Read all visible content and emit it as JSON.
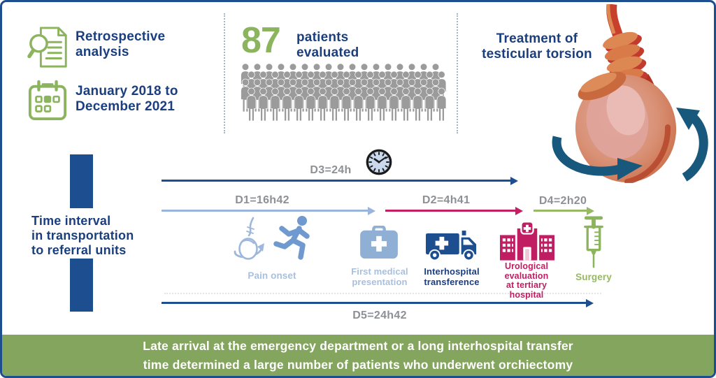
{
  "palette": {
    "navy": "#1d4e8f",
    "navy_text": "#1b3f7e",
    "green": "#8cb45e",
    "light_blue_arrow": "#9ab5dc",
    "pale_blue_text": "#a9c0dd",
    "runner_blue": "#6f99cf",
    "crimson": "#c41f60",
    "gray_label": "#8d9094",
    "crowd_gray": "#9b9b9b",
    "banner_bg": "#84a55e",
    "torsion_arrow_teal": "#19587d"
  },
  "study": {
    "type": "Retrospective analysis",
    "period": "January 2018 to\nDecember 2021"
  },
  "patients": {
    "count": "87",
    "label": "patients\nevaluated",
    "crowd_rows": 4,
    "crowd_per_row": 17
  },
  "treatment": {
    "title": "Treatment of\ntesticular torsion"
  },
  "timeline": {
    "axis_label": "Time interval\nin transportation\nto referral units",
    "intervals": [
      {
        "id": "D3",
        "label": "D3=24h"
      },
      {
        "id": "D1",
        "label": "D1=16h42"
      },
      {
        "id": "D2",
        "label": "D2=4h41"
      },
      {
        "id": "D4",
        "label": "D4=2h20"
      },
      {
        "id": "D5",
        "label": "D5=24h42"
      }
    ],
    "steps": [
      {
        "label": "Pain onset"
      },
      {
        "label": "First medical\npresentation"
      },
      {
        "label": "Interhospital\ntransference"
      },
      {
        "label": "Urological\nevaluation\nat tertiary\nhospital"
      },
      {
        "label": "Surgery"
      }
    ]
  },
  "banner": {
    "text": "Late arrival at the emergency department or a long interhospital transfer\ntime determined a large number of patients who underwent orchiectomy"
  }
}
